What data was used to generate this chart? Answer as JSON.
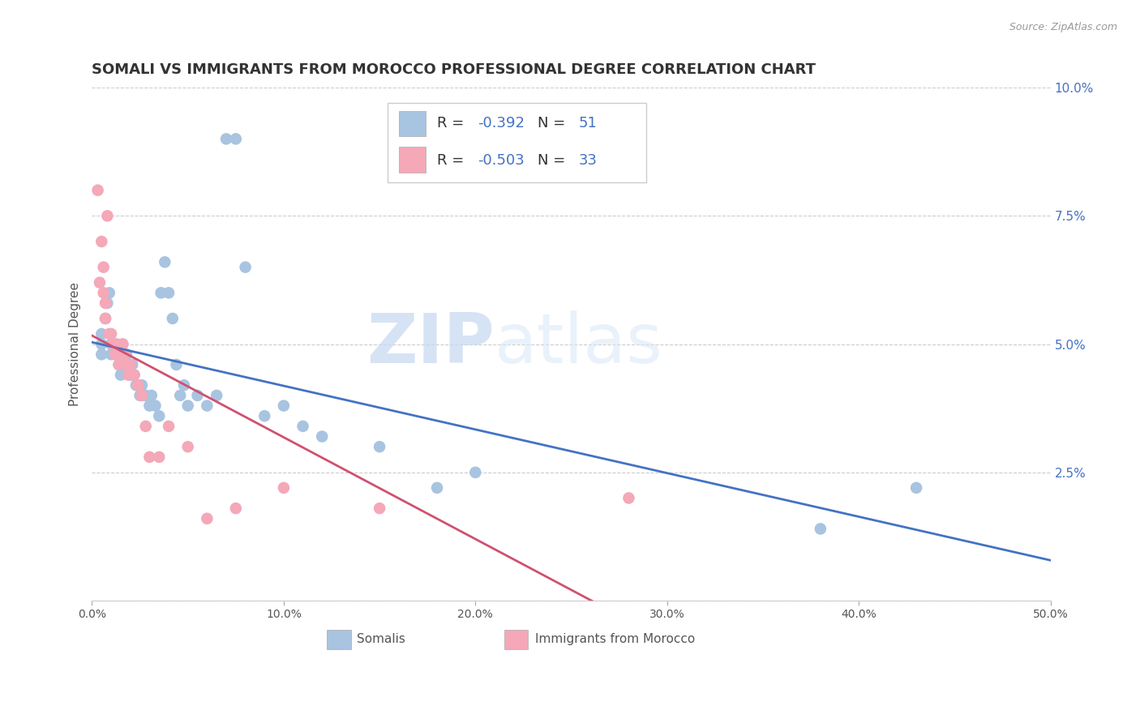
{
  "title": "SOMALI VS IMMIGRANTS FROM MOROCCO PROFESSIONAL DEGREE CORRELATION CHART",
  "source": "Source: ZipAtlas.com",
  "xlabel_somali": "Somalis",
  "xlabel_morocco": "Immigrants from Morocco",
  "ylabel": "Professional Degree",
  "xlim": [
    0,
    0.5
  ],
  "ylim": [
    0,
    0.1
  ],
  "xticks": [
    0.0,
    0.1,
    0.2,
    0.3,
    0.4,
    0.5
  ],
  "xtick_labels": [
    "0.0%",
    "10.0%",
    "20.0%",
    "30.0%",
    "40.0%",
    "50.0%"
  ],
  "yticks": [
    0.0,
    0.025,
    0.05,
    0.075,
    0.1
  ],
  "ytick_labels": [
    "",
    "2.5%",
    "5.0%",
    "7.5%",
    "10.0%"
  ],
  "R_somali": -0.392,
  "N_somali": 51,
  "R_morocco": -0.503,
  "N_morocco": 33,
  "color_somali": "#a8c4e0",
  "color_morocco": "#f4a8b8",
  "line_color_somali": "#4472c4",
  "line_color_morocco": "#d05070",
  "legend_color_blue": "#4472c4",
  "watermark_zip": "ZIP",
  "watermark_atlas": "atlas",
  "background_color": "#ffffff",
  "grid_color": "#cccccc",
  "title_fontsize": 13,
  "axis_label_fontsize": 11,
  "somali_x": [
    0.005,
    0.005,
    0.005,
    0.007,
    0.008,
    0.009,
    0.01,
    0.01,
    0.012,
    0.013,
    0.014,
    0.015,
    0.016,
    0.018,
    0.018,
    0.019,
    0.02,
    0.021,
    0.022,
    0.023,
    0.024,
    0.025,
    0.026,
    0.028,
    0.03,
    0.031,
    0.033,
    0.035,
    0.036,
    0.038,
    0.04,
    0.042,
    0.044,
    0.046,
    0.048,
    0.05,
    0.055,
    0.06,
    0.065,
    0.07,
    0.075,
    0.08,
    0.09,
    0.1,
    0.11,
    0.12,
    0.15,
    0.18,
    0.2,
    0.38,
    0.43
  ],
  "somali_y": [
    0.048,
    0.05,
    0.052,
    0.055,
    0.058,
    0.06,
    0.05,
    0.048,
    0.05,
    0.048,
    0.046,
    0.044,
    0.05,
    0.048,
    0.046,
    0.045,
    0.044,
    0.046,
    0.044,
    0.042,
    0.042,
    0.04,
    0.042,
    0.04,
    0.038,
    0.04,
    0.038,
    0.036,
    0.06,
    0.066,
    0.06,
    0.055,
    0.046,
    0.04,
    0.042,
    0.038,
    0.04,
    0.038,
    0.04,
    0.09,
    0.09,
    0.065,
    0.036,
    0.038,
    0.034,
    0.032,
    0.03,
    0.022,
    0.025,
    0.014,
    0.022
  ],
  "morocco_x": [
    0.003,
    0.004,
    0.005,
    0.006,
    0.006,
    0.007,
    0.007,
    0.008,
    0.009,
    0.01,
    0.011,
    0.012,
    0.013,
    0.014,
    0.015,
    0.016,
    0.017,
    0.018,
    0.019,
    0.02,
    0.022,
    0.024,
    0.026,
    0.028,
    0.03,
    0.035,
    0.04,
    0.05,
    0.06,
    0.075,
    0.1,
    0.15,
    0.28
  ],
  "morocco_y": [
    0.08,
    0.062,
    0.07,
    0.065,
    0.06,
    0.058,
    0.055,
    0.075,
    0.052,
    0.052,
    0.05,
    0.048,
    0.05,
    0.046,
    0.048,
    0.05,
    0.048,
    0.046,
    0.044,
    0.046,
    0.044,
    0.042,
    0.04,
    0.034,
    0.028,
    0.028,
    0.034,
    0.03,
    0.016,
    0.018,
    0.022,
    0.018,
    0.02
  ]
}
